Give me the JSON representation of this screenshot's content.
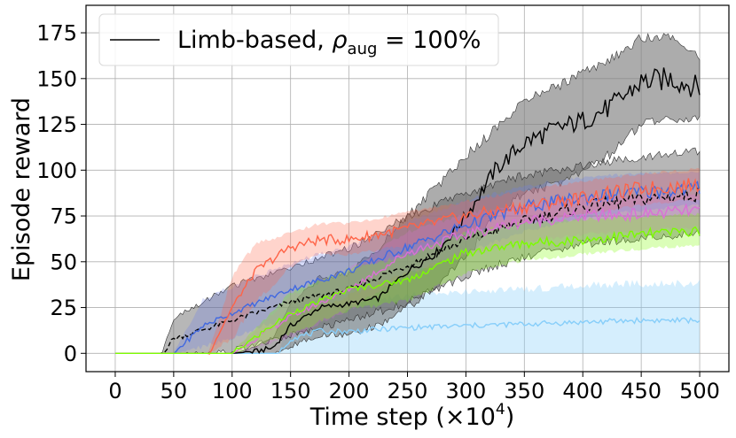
{
  "chart_data": {
    "type": "line",
    "title": "",
    "xlabel": "Time step (×10",
    "xlabel_exponent": "4",
    "xlabel_suffix": ")",
    "ylabel": "Episode reward",
    "xlim": [
      -25,
      525
    ],
    "ylim": [
      -10,
      190
    ],
    "xticks": [
      0,
      50,
      100,
      150,
      200,
      250,
      300,
      350,
      400,
      450,
      500
    ],
    "yticks": [
      0,
      25,
      50,
      75,
      100,
      125,
      150,
      175
    ],
    "grid": true,
    "legend": {
      "placement": "top-left",
      "entries": [
        {
          "name": "Limb-based, ρaug = 100%",
          "name_prefix": "Limb-based, ",
          "name_symbol": "ρ",
          "name_subscript": "aug",
          "name_suffix": " = 100%",
          "color": "#000000"
        }
      ]
    },
    "series": [
      {
        "name": "Limb-based, ρaug = 100%",
        "color": "#000000",
        "band_color": "#808080",
        "band_opacity": 0.65,
        "dashed": false,
        "x": [
          0,
          100,
          120,
          135,
          150,
          175,
          200,
          225,
          250,
          275,
          300,
          325,
          350,
          375,
          400,
          425,
          450,
          475,
          500
        ],
        "mean": [
          0,
          0,
          1,
          3,
          15,
          25,
          27,
          30,
          45,
          55,
          75,
          100,
          115,
          122,
          127,
          135,
          148,
          150,
          145
        ],
        "low": [
          0,
          0,
          0,
          0,
          5,
          12,
          12,
          18,
          28,
          40,
          55,
          78,
          90,
          95,
          102,
          112,
          128,
          130,
          130
        ],
        "high": [
          0,
          0,
          3,
          8,
          25,
          40,
          42,
          55,
          72,
          88,
          105,
          120,
          135,
          142,
          150,
          158,
          170,
          170,
          160
        ]
      },
      {
        "name": "",
        "color": "#000000",
        "band_color": "#606060",
        "band_opacity": 0.45,
        "dashed": true,
        "x": [
          0,
          40,
          50,
          100,
          150,
          200,
          250,
          300,
          350,
          400,
          450,
          500
        ],
        "mean": [
          0,
          0,
          8,
          18,
          28,
          35,
          48,
          62,
          72,
          80,
          84,
          87
        ],
        "low": [
          0,
          0,
          0,
          3,
          12,
          20,
          30,
          45,
          55,
          62,
          65,
          68
        ],
        "high": [
          0,
          0,
          18,
          35,
          45,
          55,
          72,
          85,
          95,
          100,
          105,
          108
        ]
      },
      {
        "name": "",
        "color": "#FF6347",
        "band_color": "#FF6347",
        "band_opacity": 0.28,
        "dashed": false,
        "x": [
          0,
          80,
          100,
          120,
          150,
          175,
          200,
          250,
          300,
          350,
          400,
          450,
          500
        ],
        "mean": [
          0,
          0,
          25,
          45,
          58,
          62,
          62,
          68,
          75,
          80,
          85,
          90,
          92
        ],
        "low": [
          0,
          0,
          10,
          30,
          48,
          55,
          55,
          60,
          67,
          72,
          77,
          82,
          85
        ],
        "high": [
          0,
          0,
          40,
          58,
          65,
          70,
          70,
          76,
          82,
          88,
          93,
          97,
          100
        ]
      },
      {
        "name": "",
        "color": "#4169E1",
        "band_color": "#6A7FE8",
        "band_opacity": 0.28,
        "dashed": false,
        "x": [
          0,
          50,
          75,
          100,
          150,
          200,
          250,
          300,
          350,
          400,
          450,
          500
        ],
        "mean": [
          0,
          0,
          15,
          22,
          35,
          45,
          58,
          70,
          80,
          85,
          88,
          90
        ],
        "low": [
          0,
          0,
          5,
          10,
          22,
          33,
          45,
          57,
          68,
          75,
          79,
          82
        ],
        "high": [
          0,
          0,
          28,
          35,
          48,
          57,
          70,
          82,
          90,
          95,
          97,
          98
        ]
      },
      {
        "name": "",
        "color": "#DA70D6",
        "band_color": "#DA70D6",
        "band_opacity": 0.25,
        "dashed": false,
        "x": [
          0,
          100,
          150,
          200,
          250,
          300,
          350,
          400,
          450,
          500
        ],
        "mean": [
          0,
          0,
          20,
          35,
          55,
          65,
          72,
          75,
          76,
          78
        ],
        "low": [
          0,
          0,
          10,
          25,
          45,
          55,
          62,
          66,
          68,
          70
        ],
        "high": [
          0,
          0,
          30,
          45,
          65,
          75,
          80,
          85,
          85,
          86
        ]
      },
      {
        "name": "",
        "color": "#7CFC00",
        "band_color": "#7CFC00",
        "band_opacity": 0.28,
        "dashed": false,
        "x": [
          0,
          100,
          150,
          200,
          250,
          300,
          350,
          400,
          450,
          500
        ],
        "mean": [
          0,
          0,
          22,
          35,
          40,
          55,
          60,
          62,
          65,
          67
        ],
        "low": [
          0,
          0,
          12,
          25,
          30,
          45,
          52,
          55,
          58,
          60
        ],
        "high": [
          0,
          0,
          32,
          45,
          52,
          65,
          70,
          72,
          74,
          75
        ]
      },
      {
        "name": "",
        "color": "#87CEFA",
        "band_color": "#87CEFA",
        "band_opacity": 0.35,
        "dashed": false,
        "x": [
          0,
          140,
          150,
          175,
          200,
          250,
          300,
          350,
          400,
          450,
          500
        ],
        "mean": [
          0,
          0,
          8,
          12,
          12,
          14,
          15,
          16,
          17,
          18,
          18
        ],
        "low": [
          0,
          0,
          0,
          0,
          0,
          0,
          0,
          0,
          0,
          0,
          0
        ],
        "high": [
          0,
          0,
          20,
          25,
          25,
          30,
          32,
          33,
          35,
          36,
          36
        ]
      }
    ]
  }
}
